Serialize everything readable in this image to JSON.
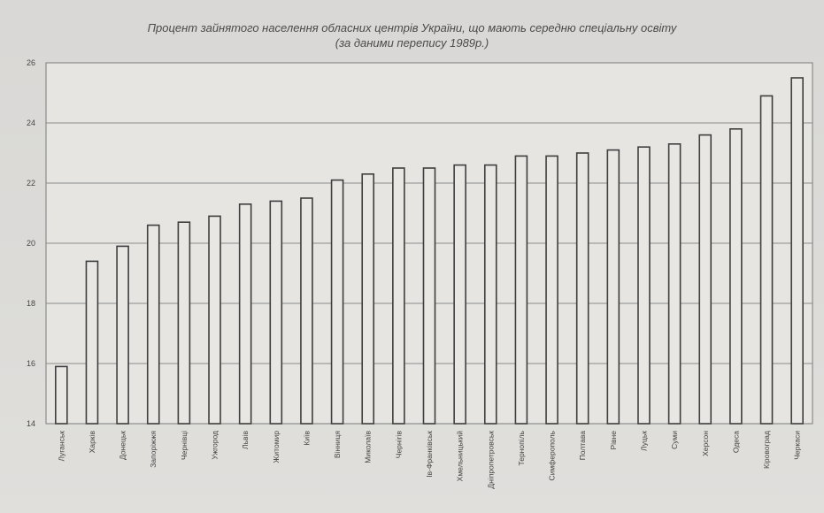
{
  "chart_data": {
    "type": "bar",
    "title": "Процент зайнятого населення обласних центрів України, що мають середню спеціальну освіту",
    "subtitle": "(за даними перепису 1989р.)",
    "xlabel": "",
    "ylabel": "",
    "ylim": [
      14,
      26
    ],
    "yticks": [
      "14",
      "16",
      "18",
      "20",
      "22",
      "24",
      "26"
    ],
    "grid": true,
    "categories": [
      "Луганськ",
      "Харків",
      "Донецьк",
      "Запоріжжя",
      "Чернівці",
      "Ужгород",
      "Львів",
      "Житомир",
      "Київ",
      "Вінниця",
      "Миколаїв",
      "Чернігів",
      "Ів-Франківськ",
      "Хмельницький",
      "Дніпропетровськ",
      "Тернопіль",
      "Симферополь",
      "Полтава",
      "Рівне",
      "Луцьк",
      "Суми",
      "Херсон",
      "Одеса",
      "Кіровоград",
      "Черкаси"
    ],
    "values": [
      15.9,
      19.4,
      19.9,
      20.6,
      20.7,
      20.9,
      21.3,
      21.4,
      21.5,
      22.1,
      22.3,
      22.5,
      22.5,
      22.6,
      22.6,
      22.9,
      22.9,
      23.0,
      23.1,
      23.2,
      23.3,
      23.6,
      23.8,
      24.9,
      25.5
    ]
  }
}
